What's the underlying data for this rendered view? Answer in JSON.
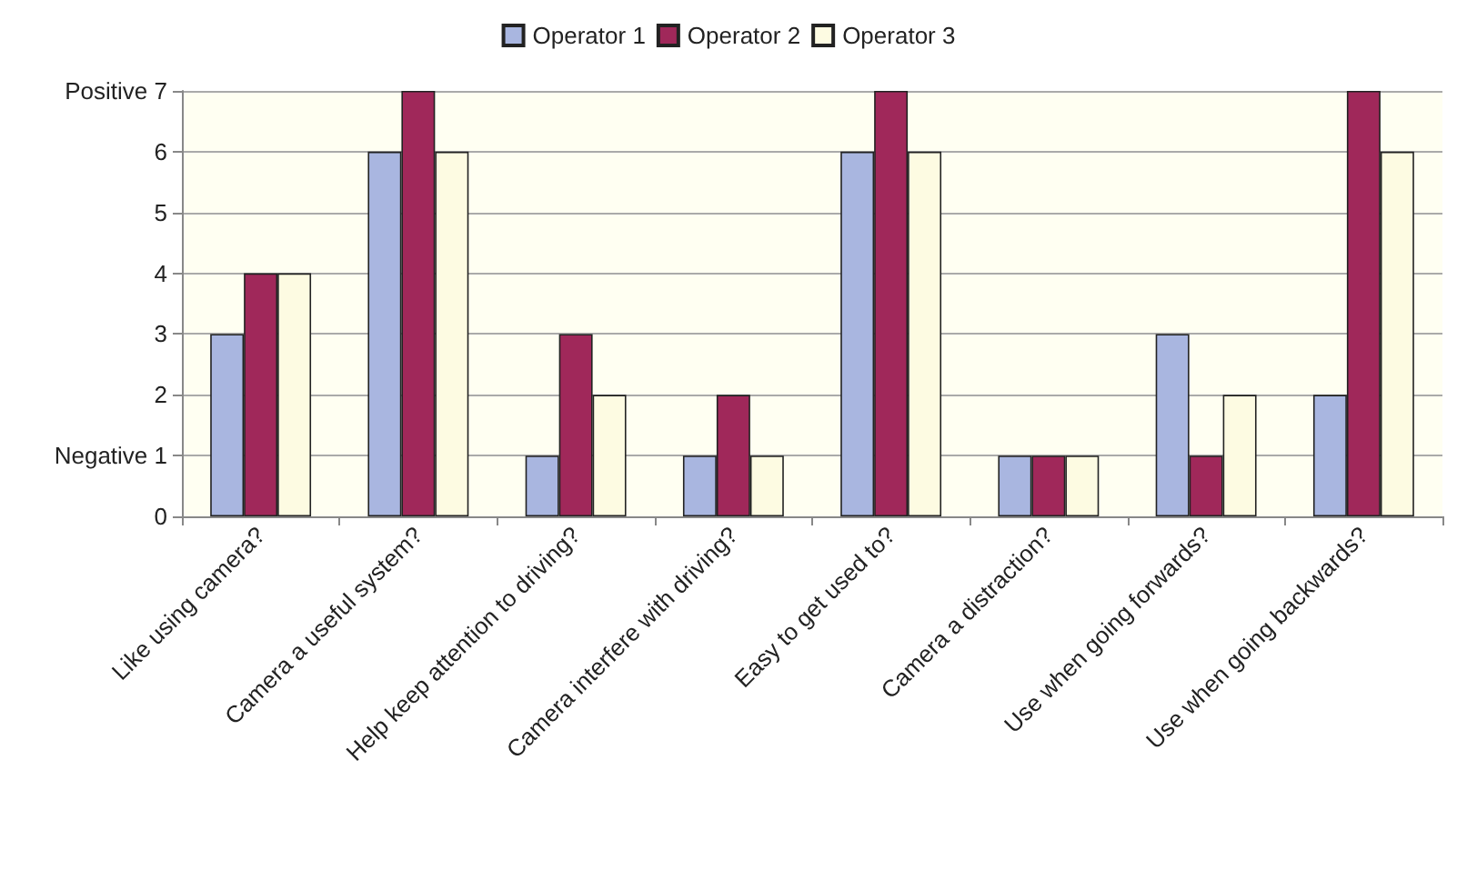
{
  "chart_data": {
    "type": "bar",
    "categories": [
      "Like using camera?",
      "Camera a useful system?",
      "Help keep attention to driving?",
      "Camera interfere with driving?",
      "Easy to get used to?",
      "Camera a distraction?",
      "Use when going forwards?",
      "Use when going backwards?"
    ],
    "series": [
      {
        "name": "Operator 1",
        "color": "#a9b6e0",
        "values": [
          3,
          6,
          1,
          1,
          6,
          1,
          3,
          2
        ]
      },
      {
        "name": "Operator 2",
        "color": "#a0285a",
        "values": [
          4,
          7,
          3,
          2,
          7,
          1,
          1,
          7
        ]
      },
      {
        "name": "Operator 3",
        "color": "#fdfbe2",
        "values": [
          4,
          6,
          2,
          1,
          6,
          1,
          2,
          6
        ]
      }
    ],
    "ylim": [
      0,
      7
    ],
    "yticks": [
      0,
      {
        "value": 1,
        "label": "Negative 1"
      },
      2,
      3,
      4,
      5,
      6,
      {
        "value": 7,
        "label": "Positive 7"
      }
    ],
    "grid": "y",
    "legend": "top"
  }
}
